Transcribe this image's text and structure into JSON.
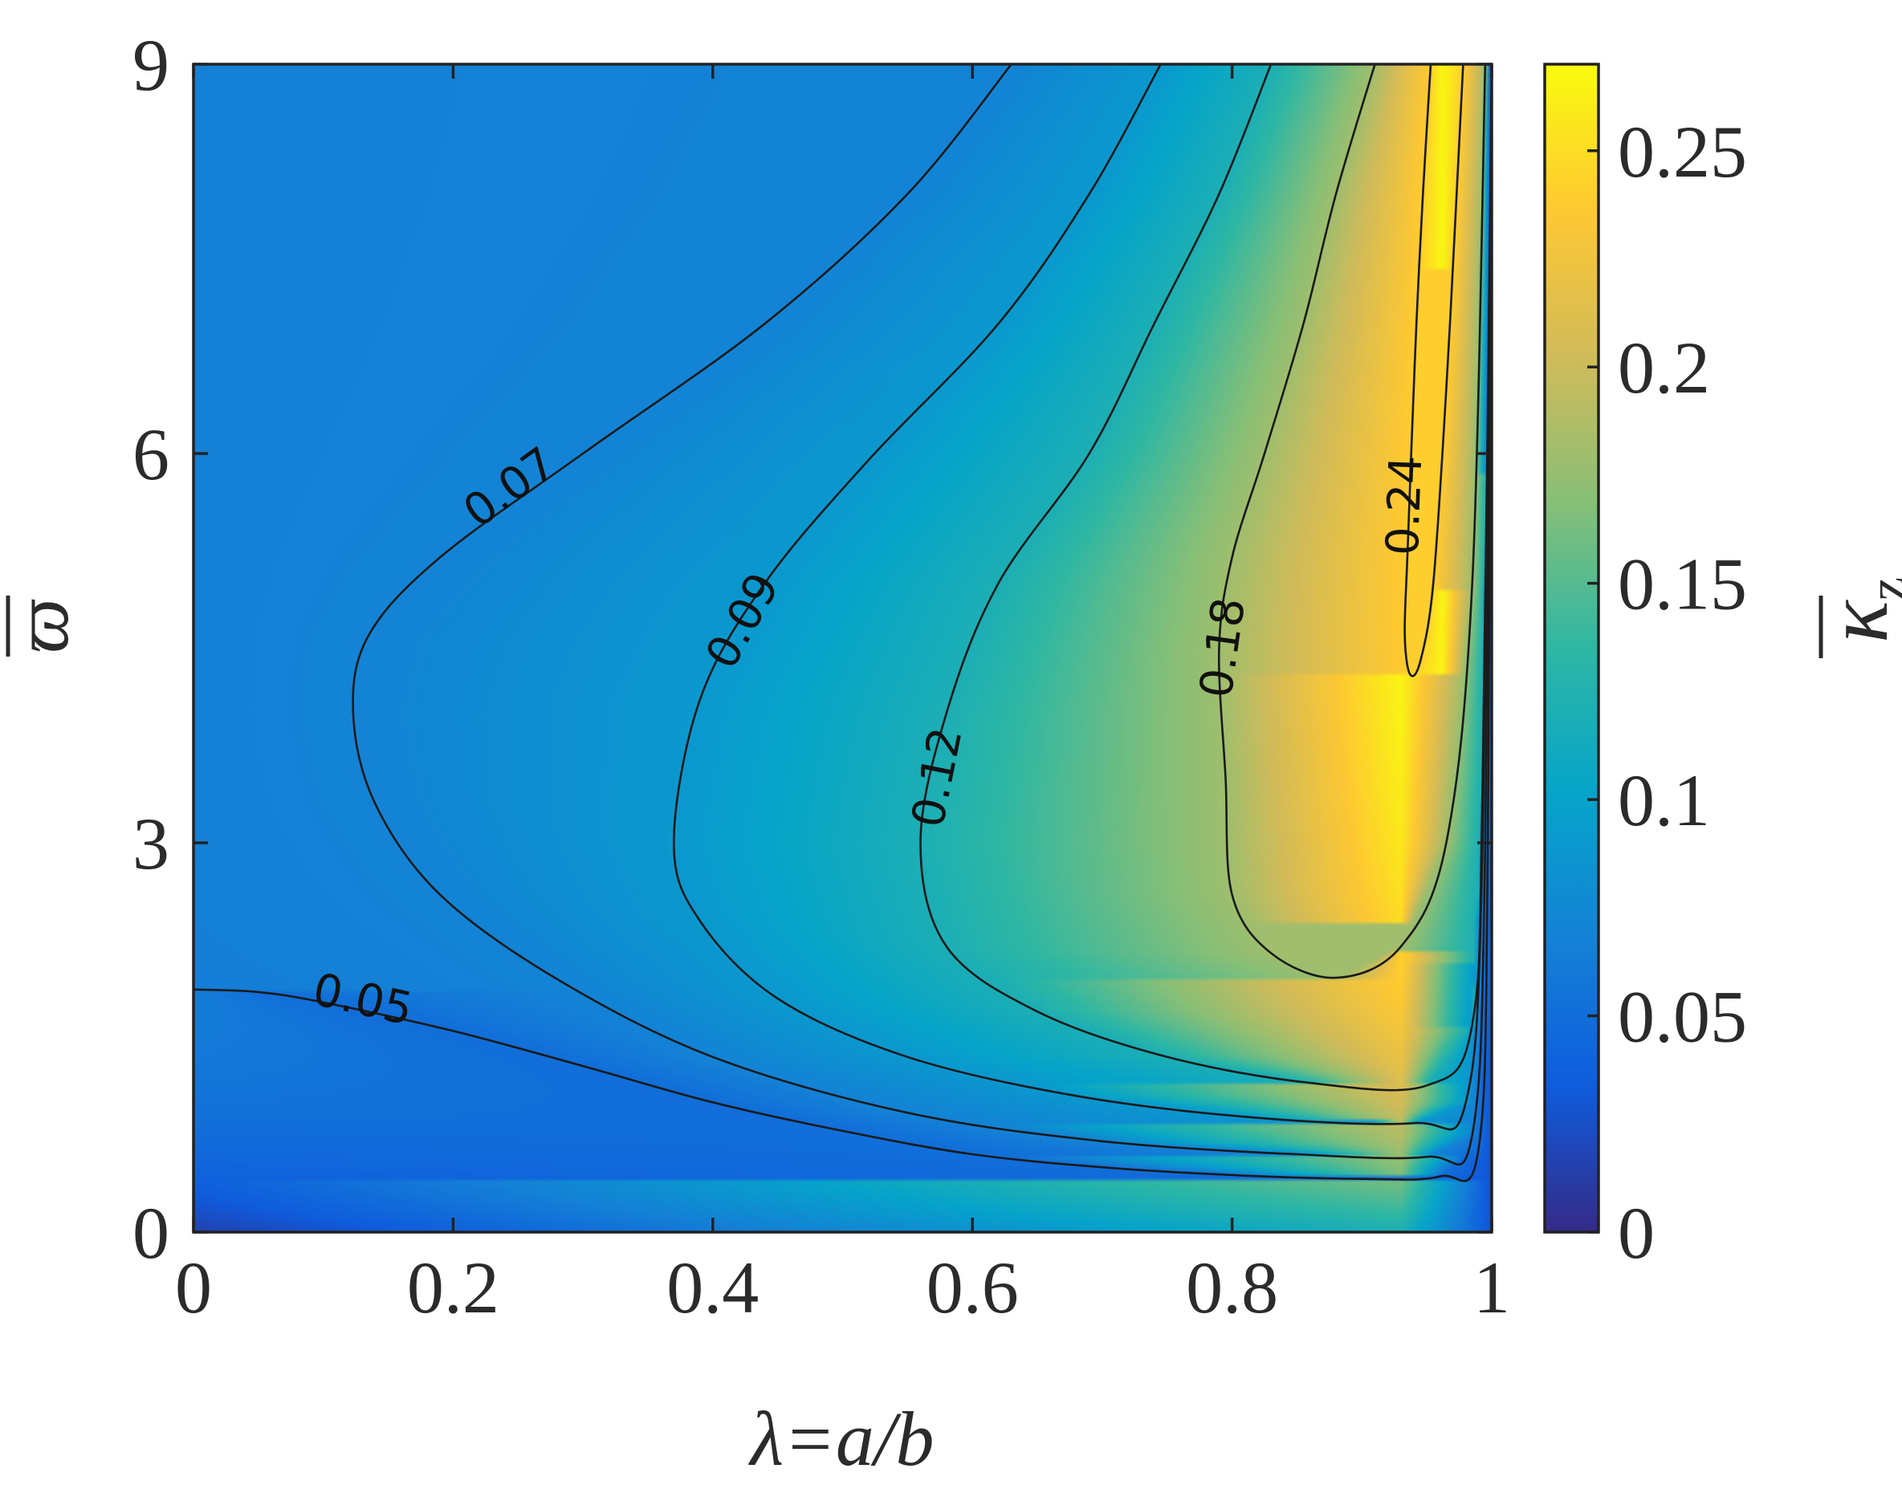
{
  "chart_data": {
    "type": "heatmap",
    "title": "",
    "xlabel": "λ=a/b",
    "ylabel": "ϖ",
    "colorbar_label": "κ",
    "colorbar_label_sub": "z",
    "xlim": [
      0,
      1
    ],
    "ylim": [
      0,
      9
    ],
    "clim": [
      0,
      0.27
    ],
    "x_ticks": [
      0,
      0.2,
      0.4,
      0.6,
      0.8,
      1
    ],
    "x_tick_labels": [
      "0",
      "0.2",
      "0.4",
      "0.6",
      "0.8",
      "1"
    ],
    "y_ticks": [
      0,
      3,
      6,
      9
    ],
    "y_tick_labels": [
      "0",
      "3",
      "6",
      "9"
    ],
    "colorbar_ticks": [
      0,
      0.05,
      0.1,
      0.15,
      0.2,
      0.25
    ],
    "colorbar_tick_labels": [
      "0",
      "0.05",
      "0.1",
      "0.15",
      "0.2",
      "0.25"
    ],
    "colormap": "parula",
    "colormap_stops": [
      "#352a87",
      "#0f5cdd",
      "#1481d6",
      "#06a4ca",
      "#2eb7a4",
      "#87bf77",
      "#d1bb59",
      "#fec832",
      "#f9fb0e"
    ],
    "contours": [
      {
        "level": 0.05,
        "label": "0.05",
        "points": [
          [
            0,
            1.87
          ],
          [
            0.05,
            1.85
          ],
          [
            0.1,
            1.77
          ],
          [
            0.2,
            1.55
          ],
          [
            0.3,
            1.28
          ],
          [
            0.4,
            1.0
          ],
          [
            0.5,
            0.78
          ],
          [
            0.6,
            0.6
          ],
          [
            0.7,
            0.5
          ],
          [
            0.8,
            0.44
          ],
          [
            0.9,
            0.41
          ],
          [
            0.96,
            0.43
          ],
          [
            0.99,
            0.65
          ],
          [
            0.997,
            3.0
          ],
          [
            1.0,
            9.0
          ]
        ]
      },
      {
        "level": 0.07,
        "label": "0.07",
        "points": [
          [
            0.63,
            9.0
          ],
          [
            0.55,
            8.0
          ],
          [
            0.44,
            7.0
          ],
          [
            0.3,
            6.0
          ],
          [
            0.19,
            5.2
          ],
          [
            0.135,
            4.6
          ],
          [
            0.123,
            4.0
          ],
          [
            0.14,
            3.3
          ],
          [
            0.19,
            2.6
          ],
          [
            0.28,
            1.95
          ],
          [
            0.4,
            1.35
          ],
          [
            0.55,
            0.92
          ],
          [
            0.7,
            0.7
          ],
          [
            0.85,
            0.6
          ],
          [
            0.95,
            0.58
          ],
          [
            0.985,
            0.75
          ],
          [
            0.995,
            3.0
          ],
          [
            1.0,
            9.0
          ]
        ]
      },
      {
        "level": 0.09,
        "label": "0.09",
        "points": [
          [
            0.745,
            9.0
          ],
          [
            0.69,
            8.0
          ],
          [
            0.62,
            7.0
          ],
          [
            0.52,
            5.95
          ],
          [
            0.44,
            5.0
          ],
          [
            0.39,
            4.1
          ],
          [
            0.37,
            3.0
          ],
          [
            0.39,
            2.4
          ],
          [
            0.45,
            1.8
          ],
          [
            0.55,
            1.35
          ],
          [
            0.68,
            1.05
          ],
          [
            0.82,
            0.88
          ],
          [
            0.94,
            0.84
          ],
          [
            0.98,
            1.0
          ],
          [
            0.993,
            3.0
          ],
          [
            1.0,
            9.0
          ]
        ]
      },
      {
        "level": 0.12,
        "label": "0.12",
        "points": [
          [
            0.83,
            9.0
          ],
          [
            0.79,
            8.0
          ],
          [
            0.74,
            7.0
          ],
          [
            0.69,
            6.0
          ],
          [
            0.62,
            5.0
          ],
          [
            0.58,
            4.0
          ],
          [
            0.56,
            3.0
          ],
          [
            0.58,
            2.2
          ],
          [
            0.65,
            1.7
          ],
          [
            0.75,
            1.35
          ],
          [
            0.86,
            1.15
          ],
          [
            0.95,
            1.13
          ],
          [
            0.985,
            1.6
          ],
          [
            0.993,
            3.5
          ],
          [
            1.0,
            9.0
          ]
        ]
      },
      {
        "level": 0.18,
        "label": "0.18",
        "points": [
          [
            0.91,
            9.0
          ],
          [
            0.88,
            8.0
          ],
          [
            0.855,
            7.0
          ],
          [
            0.825,
            6.0
          ],
          [
            0.8,
            5.2
          ],
          [
            0.79,
            4.5
          ],
          [
            0.795,
            3.5
          ],
          [
            0.8,
            2.6
          ],
          [
            0.83,
            2.15
          ],
          [
            0.88,
            1.96
          ],
          [
            0.93,
            2.2
          ],
          [
            0.965,
            3.0
          ],
          [
            0.985,
            5.0
          ],
          [
            0.995,
            9.0
          ]
        ]
      },
      {
        "level": 0.24,
        "label": "0.24",
        "points": [
          [
            0.953,
            9.0
          ],
          [
            0.947,
            8.0
          ],
          [
            0.942,
            7.0
          ],
          [
            0.938,
            6.0
          ],
          [
            0.935,
            5.2
          ],
          [
            0.933,
            4.6
          ],
          [
            0.937,
            4.3
          ],
          [
            0.945,
            4.4
          ],
          [
            0.955,
            5.0
          ],
          [
            0.965,
            6.5
          ],
          [
            0.973,
            8.0
          ],
          [
            0.978,
            9.0
          ]
        ]
      }
    ]
  }
}
